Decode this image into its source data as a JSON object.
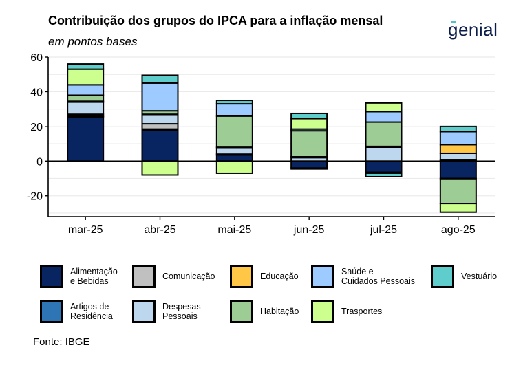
{
  "header": {
    "title": "Contribuição dos grupos do IPCA para a inflação mensal",
    "subtitle": "em pontos bases",
    "logo_text": "genial"
  },
  "source": "Fonte: IBGE",
  "chart_data": {
    "type": "bar",
    "stacked": true,
    "categories": [
      "mar-25",
      "abr-25",
      "mai-25",
      "jun-25",
      "jul-25",
      "ago-25"
    ],
    "ylim": [
      -32,
      60
    ],
    "yticks": [
      60,
      40,
      20,
      0,
      -20
    ],
    "ytick_labels": [
      "60",
      "40",
      "20",
      "0",
      "-20"
    ],
    "grid": true,
    "legend_position": "bottom",
    "series": [
      {
        "name": "Alimentação\ne Bebidas",
        "color": "#082461",
        "values": [
          25.5,
          18,
          3.5,
          -4,
          -6.5,
          -10
        ]
      },
      {
        "name": "Artigos de\nResidência",
        "color": "#2e75b6",
        "values": [
          0.5,
          0.5,
          0.5,
          -0.5,
          -0.5,
          -0.5
        ]
      },
      {
        "name": "Comunicação",
        "color": "#c0c0c0",
        "values": [
          1,
          3,
          0,
          0,
          0,
          0.5
        ]
      },
      {
        "name": "Despesas\nPessoais",
        "color": "#bdd7ee",
        "values": [
          7,
          5,
          3.5,
          2,
          8,
          4
        ]
      },
      {
        "name": "Educação",
        "color": "#ffc745",
        "values": [
          0.5,
          0.5,
          0.5,
          0.5,
          0.5,
          5
        ]
      },
      {
        "name": "Habitação",
        "color": "#9dcc94",
        "values": [
          3.5,
          2,
          18,
          15,
          14,
          -14
        ]
      },
      {
        "name": "Saúde e\nCuidados Pessoais",
        "color": "#9dcbff",
        "values": [
          6,
          16,
          7,
          1,
          6,
          7.5
        ]
      },
      {
        "name": "Trasportes",
        "color": "#ccff8e",
        "values": [
          9,
          -8,
          -7,
          6,
          5,
          -5
        ]
      },
      {
        "name": "Vestuário",
        "color": "#5fcdcb",
        "values": [
          3,
          4.5,
          2,
          3,
          -2,
          3
        ]
      }
    ]
  }
}
